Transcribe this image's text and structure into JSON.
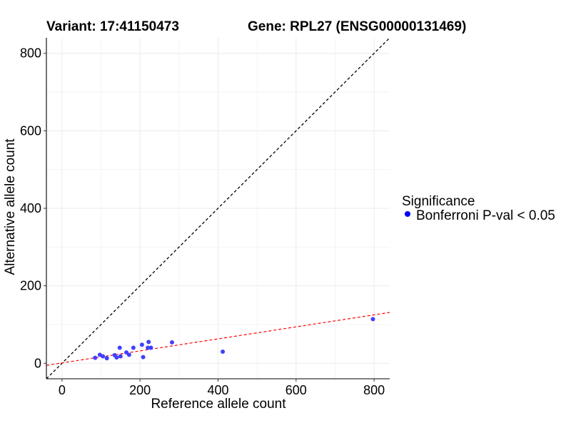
{
  "chart_data": {
    "type": "scatter",
    "title_left": "Variant: 17:41150473",
    "title_right": "Gene: RPL27 (ENSG00000131469)",
    "xlabel": "Reference allele count",
    "ylabel": "Alternative allele count",
    "xlim": [
      -40,
      840
    ],
    "ylim": [
      -40,
      840
    ],
    "xticks": [
      0,
      200,
      400,
      600,
      800
    ],
    "yticks": [
      0,
      200,
      400,
      600,
      800
    ],
    "grid": true,
    "legend": {
      "title": "Significance",
      "entries": [
        {
          "label": "Bonferroni P-val < 0.05",
          "color": "#0000ff"
        }
      ],
      "position": "right"
    },
    "reference_line": {
      "slope": 1,
      "intercept": 0,
      "style": "dashed",
      "color": "#000000"
    },
    "fit_line": {
      "slope": 0.155,
      "intercept": 1,
      "style": "dashed",
      "color": "#ff0000"
    },
    "series": [
      {
        "name": "Bonferroni P-val < 0.05",
        "color": "#4040ff",
        "points": [
          {
            "x": 85,
            "y": 14
          },
          {
            "x": 97,
            "y": 22
          },
          {
            "x": 105,
            "y": 18
          },
          {
            "x": 115,
            "y": 13
          },
          {
            "x": 135,
            "y": 21
          },
          {
            "x": 140,
            "y": 15
          },
          {
            "x": 148,
            "y": 40
          },
          {
            "x": 150,
            "y": 18
          },
          {
            "x": 165,
            "y": 28
          },
          {
            "x": 172,
            "y": 22
          },
          {
            "x": 183,
            "y": 40
          },
          {
            "x": 205,
            "y": 48
          },
          {
            "x": 208,
            "y": 16
          },
          {
            "x": 220,
            "y": 40
          },
          {
            "x": 222,
            "y": 55
          },
          {
            "x": 228,
            "y": 40
          },
          {
            "x": 282,
            "y": 54
          },
          {
            "x": 412,
            "y": 30
          },
          {
            "x": 797,
            "y": 114
          }
        ]
      }
    ]
  }
}
